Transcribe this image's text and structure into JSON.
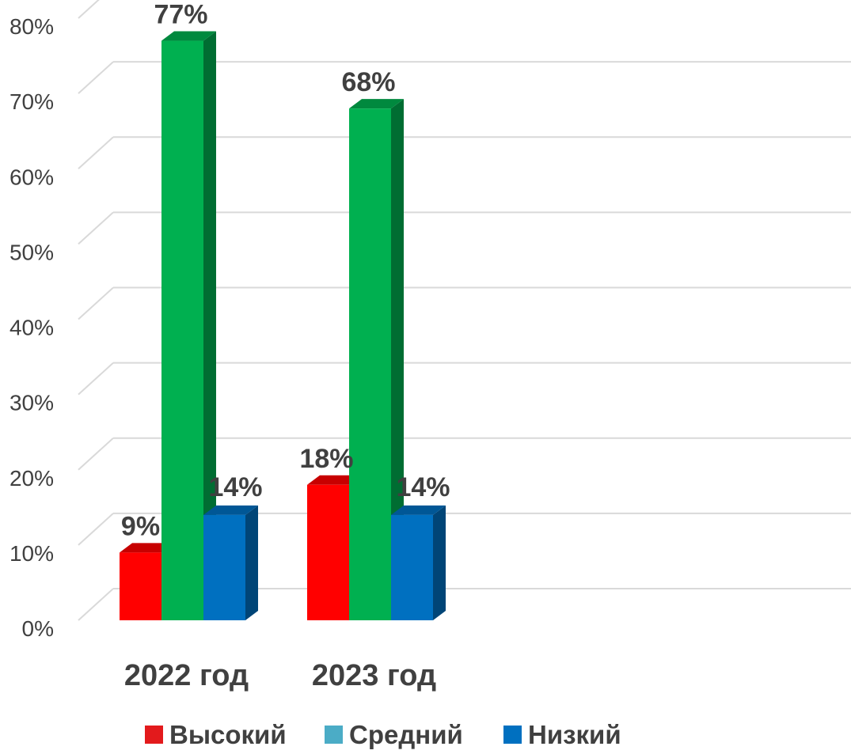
{
  "chart_data": {
    "type": "bar",
    "style": "3d-clustered-column",
    "categories": [
      "2022 год",
      "2023 год"
    ],
    "series": [
      {
        "name": "Высокий",
        "values": [
          9,
          18
        ],
        "labels": [
          "9%",
          "18%"
        ],
        "color": "#ff0000",
        "legend_color": "#e31a1c"
      },
      {
        "name": "Средний",
        "values": [
          77,
          68
        ],
        "labels": [
          "77%",
          "68%"
        ],
        "color": "#00b050",
        "legend_color": "#4bacc6"
      },
      {
        "name": "Низкий",
        "values": [
          14,
          14
        ],
        "labels": [
          "14%",
          "14%"
        ],
        "color": "#0070c0",
        "legend_color": "#0070c0"
      }
    ],
    "y_ticks": [
      "0%",
      "10%",
      "20%",
      "30%",
      "40%",
      "50%",
      "60%",
      "70%",
      "80%"
    ],
    "ylim": [
      0,
      80
    ],
    "grid": true,
    "legend_position": "bottom",
    "title": "",
    "xlabel": "",
    "ylabel": ""
  }
}
